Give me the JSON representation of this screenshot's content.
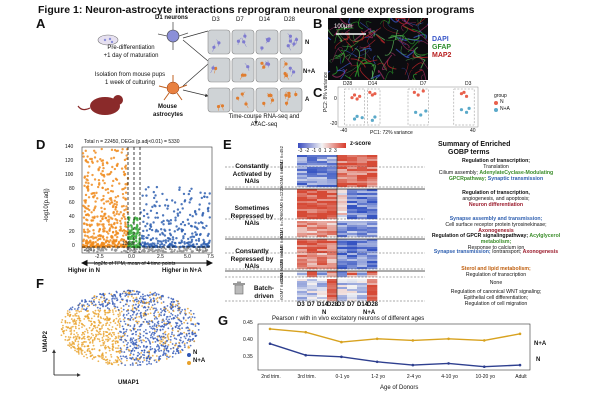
{
  "figure_title": "Figure 1: Neuron-astrocyte interactions reprogram neuronal gene expression programs",
  "panels": {
    "A": "A",
    "B": "B",
    "C": "C",
    "D": "D",
    "E": "E",
    "F": "F",
    "G": "G"
  },
  "panelA": {
    "d1_neurons": "D1 neurons",
    "pre_diff": "Pre-differentiation",
    "maturation": "+1 day of maturation",
    "isolation": "Isolation from mouse pups",
    "culturing": "1 week of culturing",
    "mouse": "Mouse",
    "astrocytes": "astrocytes",
    "timepoints": [
      "D3",
      "D7",
      "D14",
      "D28"
    ],
    "rows": [
      "N",
      "N+A",
      "A"
    ],
    "timecourse": "Time-course RNA-seq and",
    "atac": "ATAC-seq"
  },
  "panelB": {
    "scale": "100μm",
    "dapi": "DAPI",
    "gfap": "GFAP",
    "map2": "MAP2"
  },
  "panelC": {
    "xlabel": "PC1: 72% variance",
    "ylabel": "PC2: 8% variance",
    "groups": [
      "D28",
      "D14",
      "D7",
      "D3"
    ],
    "legend_title": "group",
    "legend": [
      "N",
      "N+A"
    ],
    "yticks": [
      "0",
      "-20"
    ],
    "xticks": [
      "-40",
      "40"
    ],
    "colors": {
      "N": "#e8604c",
      "NA": "#5aa9c9"
    }
  },
  "panelD": {
    "header": "Total n = 22450, DEGs (p.adj<0.01) = 5330",
    "ylabel": "-log10(p.adj)",
    "xlabel": "log2fc of TPM, mean of 4 time points",
    "yticks": [
      "140",
      "120",
      "100",
      "80",
      "60",
      "40",
      "20",
      "0"
    ],
    "xticks": [
      "-2.5",
      "0.0",
      "2.5",
      "5.0",
      "7.5"
    ],
    "count_left": "2361",
    "count_right": "1611",
    "count_mid": "1358",
    "higher_n": "Higher in N",
    "higher_na": "Higher in N+A"
  },
  "panelE": {
    "zscore": "z-score",
    "scale_ticks": [
      "-3",
      "-2",
      "-1",
      "0",
      "1",
      "2",
      "3"
    ],
    "summary_title": "Summary of Enriched",
    "summary_sub": "GOBP terms",
    "groups": [
      "Constantly Activated by NAIs",
      "Sometimes Repressed by NAIs",
      "Constantly Repressed by NAIs",
      "Batch-driven"
    ],
    "modules": [
      "nGM2 n=452",
      "nGM4 n=624",
      "nGM0 n=1223",
      "nGM1 n=706",
      "nGM3 n=511",
      "nGM5 n=649",
      "nGM6 n=138",
      "nGM7 n=1014"
    ],
    "xticks": [
      "D3",
      "D7",
      "D14",
      "D28",
      "D3",
      "D7",
      "D14",
      "D28"
    ],
    "cond": [
      "N",
      "N+A"
    ],
    "none": "None"
  },
  "panelF": {
    "xlabel": "UMAP1",
    "ylabel": "UMAP2",
    "legend": [
      "N",
      "N+A"
    ]
  },
  "panelG": {
    "title": "Pearson r with in vivo excitatory neurons of different ages",
    "xlabel": "Age of Donors",
    "yticks": [
      "0.45",
      "0.40",
      "0.35"
    ],
    "label_na": "N+A",
    "label_n": "N"
  },
  "chart_data": [
    {
      "type": "line",
      "title": "Pearson r with in vivo excitatory neurons of different ages",
      "xlabel": "Age of Donors",
      "categories": [
        "2nd trim.",
        "3rd trim.",
        "0-1 yo",
        "1-2 yo",
        "2-4 yo",
        "4-10 yo",
        "10-20 yo",
        "Adult"
      ],
      "ylim": [
        0.33,
        0.47
      ],
      "series": [
        {
          "name": "N+A",
          "values": [
            0.455,
            0.445,
            0.415,
            0.425,
            0.42,
            0.425,
            0.42,
            0.44
          ]
        },
        {
          "name": "N",
          "values": [
            0.41,
            0.375,
            0.37,
            0.355,
            0.345,
            0.35,
            0.34,
            0.345
          ]
        }
      ]
    },
    {
      "type": "scatter",
      "xlabel": "PC1: 72% variance",
      "ylabel": "PC2: 8% variance",
      "series": [
        {
          "name": "N",
          "points": [
            [
              -42,
              18
            ],
            [
              -40,
              12
            ],
            [
              -38,
              16
            ],
            [
              -44,
              14
            ],
            [
              -30,
              22
            ],
            [
              -28,
              18
            ],
            [
              -26,
              20
            ],
            [
              5,
              22
            ],
            [
              8,
              18
            ],
            [
              12,
              24
            ],
            [
              42,
              20
            ],
            [
              46,
              16
            ],
            [
              44,
              22
            ]
          ]
        },
        {
          "name": "N+A",
          "points": [
            [
              -42,
              -18
            ],
            [
              -40,
              -14
            ],
            [
              -36,
              -16
            ],
            [
              -28,
              -20
            ],
            [
              -26,
              -15
            ],
            [
              6,
              -8
            ],
            [
              10,
              -12
            ],
            [
              14,
              -6
            ],
            [
              42,
              -4
            ],
            [
              46,
              -8
            ],
            [
              48,
              -2
            ]
          ]
        }
      ]
    }
  ],
  "termsE": [
    {
      "lines": [
        [
          "b",
          "Regulation of transcription;"
        ],
        [
          "n",
          "Translation"
        ]
      ]
    },
    {
      "lines": [
        [
          "n",
          "Cilium assembly; "
        ],
        [
          "green",
          "Adenylate"
        ],
        [
          "green",
          "Cyclase-Modulating GPCR"
        ],
        [
          "green",
          "pathway; "
        ],
        [
          "blue",
          "Synaptic transmission"
        ]
      ]
    },
    {
      "lines": [
        [
          "b",
          "Regulation of transcription,"
        ],
        [
          "n",
          "angiogenesis, and apoptosis;"
        ],
        [
          "red",
          "Neuron differentiation"
        ]
      ]
    },
    {
      "lines": [
        [
          "blue",
          "Synapse assembly and transmission;"
        ],
        [
          "n",
          "Cell surface receptor protein tyrosine"
        ],
        [
          "n",
          "kinase; "
        ],
        [
          "red",
          "Axonogenesis"
        ]
      ]
    },
    {
      "lines": [
        [
          "b",
          "Regulation of GPCR signaling"
        ],
        [
          "b",
          "pathway; "
        ],
        [
          "green",
          "Acylglycerol metabolism;"
        ],
        [
          "n",
          "Response to calcium ion"
        ]
      ]
    },
    {
      "lines": [
        [
          "blue",
          "Synapse transmission; "
        ],
        [
          "n",
          "Ion"
        ],
        [
          "n",
          "transport; "
        ],
        [
          "red",
          "Axonogenesis"
        ]
      ]
    },
    {
      "lines": [
        [
          "orange",
          "Sterol and lipid metabolism;"
        ],
        [
          "n",
          "Regulation of transcription"
        ]
      ]
    },
    {
      "lines": [
        [
          "n",
          "None"
        ]
      ]
    },
    {
      "lines": [
        [
          "n",
          "Regulation of canonical WNT signaling;"
        ],
        [
          "n",
          "Epithelial cell differentiation;"
        ],
        [
          "n",
          "Regulation of cell migration"
        ]
      ]
    }
  ]
}
